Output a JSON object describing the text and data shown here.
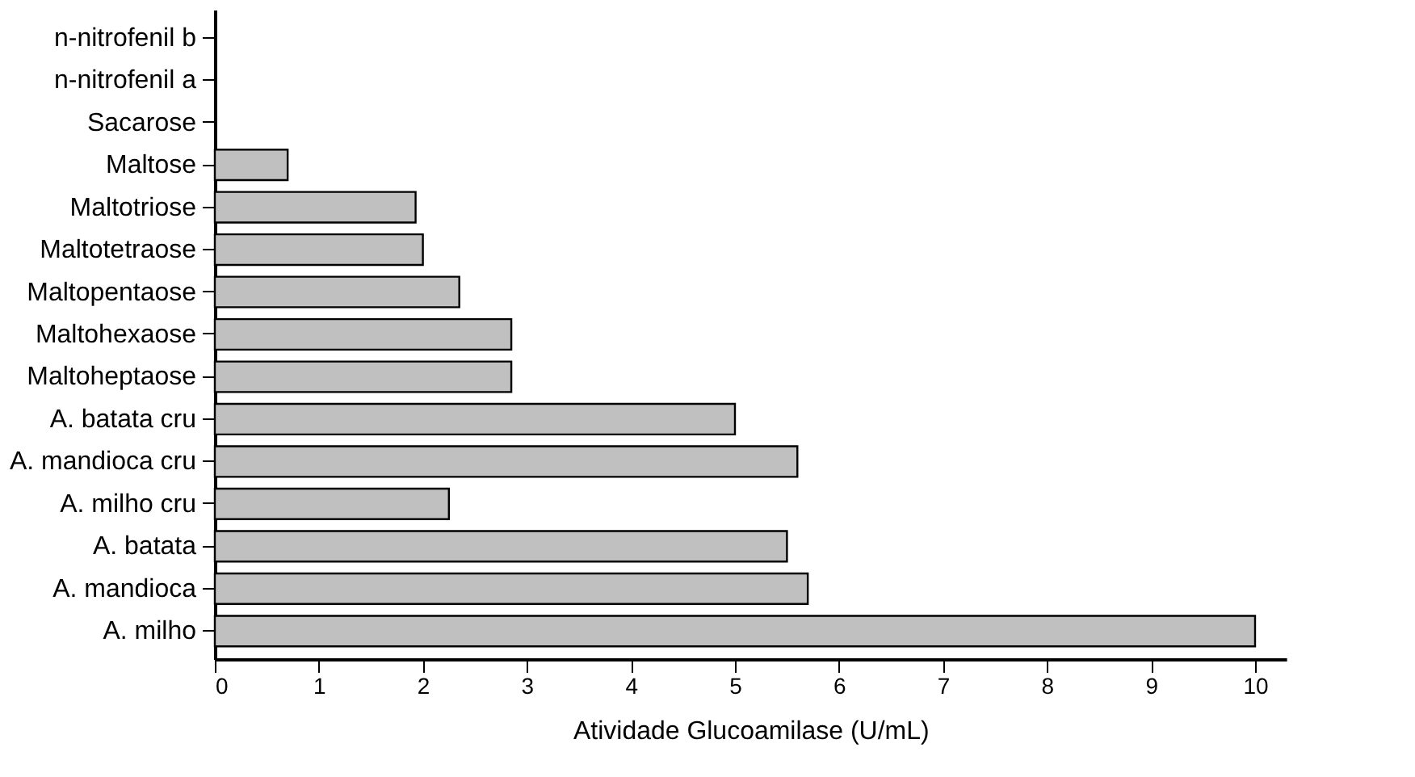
{
  "chart_data": {
    "type": "bar",
    "orientation": "horizontal",
    "xlabel": "Atividade Glucoamilase (U/mL)",
    "categories": [
      "n-nitrofenil b",
      "n-nitrofenil a",
      "Sacarose",
      "Maltose",
      "Maltotriose",
      "Maltotetraose",
      "Maltopentaose",
      "Maltohexaose",
      "Maltoheptaose",
      "A. batata cru",
      "A. mandioca cru",
      "A. milho cru",
      "A. batata",
      "A. mandioca",
      "A. milho"
    ],
    "values": [
      0,
      0,
      0,
      0.7,
      1.93,
      2.0,
      2.35,
      2.85,
      2.85,
      5.0,
      5.6,
      2.25,
      5.5,
      5.7,
      10.0
    ],
    "color": "#c0c0c0",
    "xlim": [
      0,
      10.3
    ],
    "xticks": [
      0,
      1,
      2,
      3,
      4,
      5,
      6,
      7,
      8,
      9,
      10
    ],
    "grid": false
  }
}
